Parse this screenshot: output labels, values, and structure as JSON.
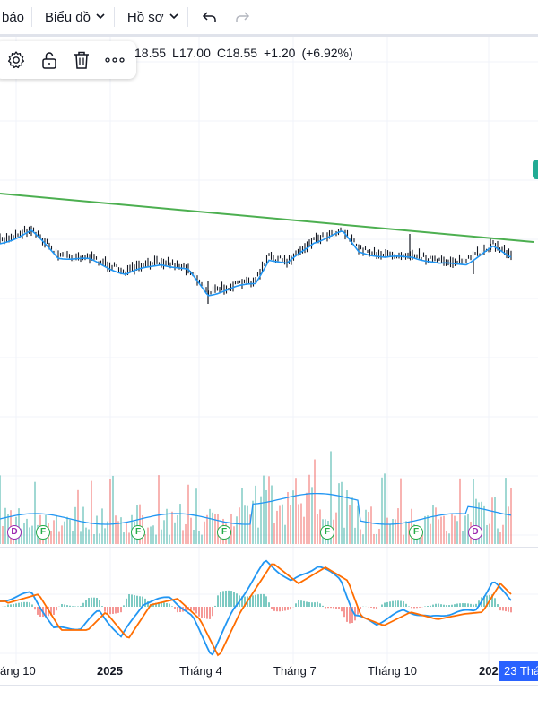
{
  "toolbar": {
    "partial_label": "báo",
    "chart_menu_label": "Biểu đồ",
    "profile_menu_label": "Hồ sơ"
  },
  "ohlc": {
    "open": "18.55",
    "low": "L17.00",
    "close": "C18.55",
    "change": "+1.20",
    "change_pct": "(+6.92%)"
  },
  "x_axis": {
    "labels": [
      "áng 10",
      "2025",
      "Tháng 4",
      "Tháng 7",
      "Tháng 10",
      "202"
    ],
    "crosshair_date": "23 Thá"
  },
  "events": [
    {
      "type": "D",
      "label": "D"
    },
    {
      "type": "F",
      "label": "F"
    },
    {
      "type": "F",
      "label": "F"
    },
    {
      "type": "F",
      "label": "F"
    },
    {
      "type": "F",
      "label": "F"
    },
    {
      "type": "F",
      "label": "F"
    },
    {
      "type": "D",
      "label": "D"
    }
  ],
  "colors": {
    "trendline": "#4caf50",
    "ma_line": "#2196f3",
    "macd_line": "#2196f3",
    "signal_line": "#ff6d00",
    "hist_up": "#26a69a",
    "hist_down": "#ef5350",
    "accent": "#2962ff"
  }
}
